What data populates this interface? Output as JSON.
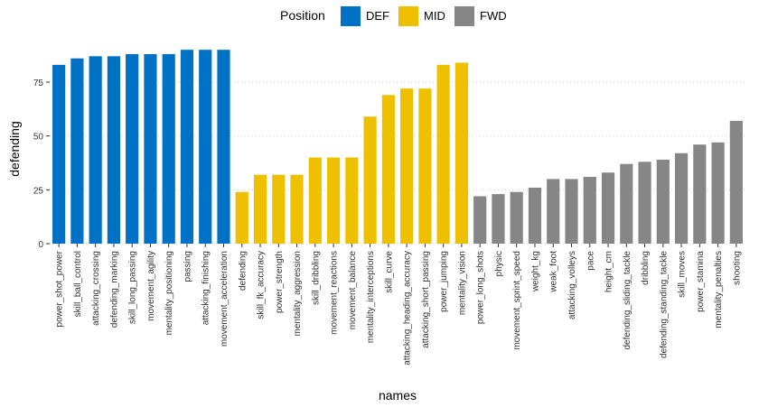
{
  "chart_data": {
    "type": "bar",
    "xlabel": "names",
    "ylabel": "defending",
    "ylim": [
      0,
      93
    ],
    "yticks": [
      0,
      25,
      50,
      75
    ],
    "grid": "horizontal dotted",
    "legend": {
      "title": "Position",
      "placement": "top",
      "entries": [
        {
          "name": "DEF",
          "color": "#0072C6"
        },
        {
          "name": "MID",
          "color": "#EFC000"
        },
        {
          "name": "FWD",
          "color": "#868686"
        }
      ]
    },
    "categories": [
      "power_shot_power",
      "skill_ball_control",
      "attacking_crossing",
      "defending_marking",
      "skill_long_passing",
      "movement_agility",
      "mentality_positioning",
      "passing",
      "attacking_finishing",
      "movement_acceleration",
      "defending",
      "skill_fk_accuracy",
      "power_strength",
      "mentality_aggression",
      "skill_dribbling",
      "movement_reactions",
      "movement_balance",
      "mentality_interceptions",
      "skill_curve",
      "attacking_heading_accuracy",
      "attacking_short_passing",
      "power_jumping",
      "mentality_vision",
      "power_long_shots",
      "physic",
      "movement_sprint_speed",
      "weight_kg",
      "weak_foot",
      "attacking_volleys",
      "pace",
      "height_cm",
      "defending_sliding_tackle",
      "dribbling",
      "defending_standing_tackle",
      "skill_moves",
      "power_stamina",
      "mentality_penalties",
      "shooting"
    ],
    "values": [
      83,
      86,
      87,
      87,
      88,
      88,
      88,
      90,
      90,
      90,
      24,
      32,
      32,
      32,
      40,
      40,
      40,
      59,
      69,
      72,
      72,
      83,
      84,
      22,
      23,
      24,
      26,
      30,
      30,
      31,
      33,
      37,
      38,
      39,
      42,
      46,
      47,
      57
    ],
    "groups": [
      "DEF",
      "DEF",
      "DEF",
      "DEF",
      "DEF",
      "DEF",
      "DEF",
      "DEF",
      "DEF",
      "DEF",
      "MID",
      "MID",
      "MID",
      "MID",
      "MID",
      "MID",
      "MID",
      "MID",
      "MID",
      "MID",
      "MID",
      "MID",
      "MID",
      "FWD",
      "FWD",
      "FWD",
      "FWD",
      "FWD",
      "FWD",
      "FWD",
      "FWD",
      "FWD",
      "FWD",
      "FWD",
      "FWD",
      "FWD",
      "FWD",
      "FWD"
    ]
  }
}
